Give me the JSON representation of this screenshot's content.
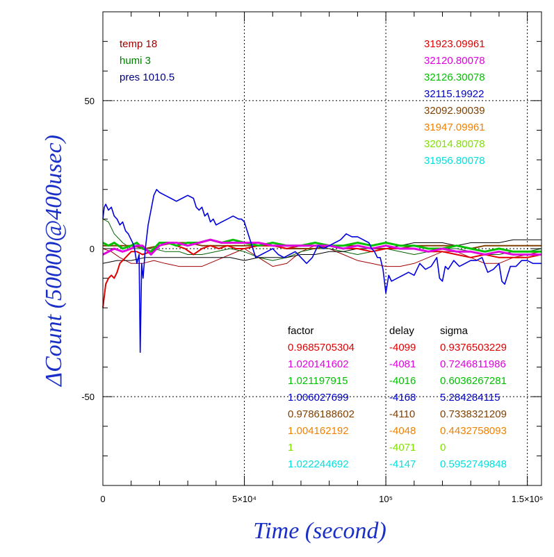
{
  "chart_data": {
    "type": "line",
    "xlabel": "Time (second)",
    "ylabel": "ΔCount (50000@400usec)",
    "xlim": [
      0,
      155000
    ],
    "ylim": [
      -80,
      80
    ],
    "x_ticks": [
      {
        "value": 0,
        "label": "0"
      },
      {
        "value": 50000,
        "label": "5×10⁴"
      },
      {
        "value": 100000,
        "label": "10⁵"
      },
      {
        "value": 150000,
        "label": "1.5×10⁵"
      }
    ],
    "y_ticks": [
      {
        "value": 50,
        "label": "50"
      },
      {
        "value": 0,
        "label": "0"
      },
      {
        "value": -50,
        "label": "-50"
      }
    ],
    "grid": true,
    "env_labels": [
      {
        "text": "temp 18",
        "color": "#a00000"
      },
      {
        "text": "humi 3",
        "color": "#008000"
      },
      {
        "text": "pres 1010.5",
        "color": "#000080"
      }
    ],
    "series_baselines": [
      {
        "text": "31923.09961",
        "color": "#e00000"
      },
      {
        "text": "32120.80078",
        "color": "#e000e0"
      },
      {
        "text": "32126.30078",
        "color": "#00c000"
      },
      {
        "text": "32115.19922",
        "color": "#0000c0"
      },
      {
        "text": "32092.90039",
        "color": "#804000"
      },
      {
        "text": "31947.09961",
        "color": "#f08000"
      },
      {
        "text": "32014.80078",
        "color": "#80e000"
      },
      {
        "text": "31956.80078",
        "color": "#00e0e0"
      }
    ],
    "stats_table": {
      "headers": [
        "factor",
        "delay",
        "sigma"
      ],
      "rows": [
        {
          "factor": "0.9685705304",
          "delay": "-4099",
          "sigma": "0.9376503229",
          "color": "#e00000"
        },
        {
          "factor": "1.020141602",
          "delay": "-4081",
          "sigma": "0.7246811986",
          "color": "#e000e0"
        },
        {
          "factor": "1.021197915",
          "delay": "-4016",
          "sigma": "0.6036267281",
          "color": "#00c000"
        },
        {
          "factor": "1.006027699",
          "delay": "-4168",
          "sigma": "5.284284115",
          "color": "#0000c0"
        },
        {
          "factor": "0.9786188602",
          "delay": "-4110",
          "sigma": "0.7338321209",
          "color": "#804000"
        },
        {
          "factor": "1.004162192",
          "delay": "-4048",
          "sigma": "0.4432758093",
          "color": "#f08000"
        },
        {
          "factor": "1",
          "delay": "-4071",
          "sigma": "0",
          "color": "#80e000"
        },
        {
          "factor": "1.022244692",
          "delay": "-4147",
          "sigma": "0.5952749848",
          "color": "#00e0e0"
        }
      ]
    },
    "series": [
      {
        "color": "#a00000",
        "width": 1,
        "x": [
          0,
          3000,
          6000,
          10000,
          14000,
          18000,
          22000,
          27000,
          30000,
          35000,
          40000,
          45000,
          50000,
          55000,
          60000,
          65000,
          70000,
          75000,
          80000,
          85000,
          90000,
          95000,
          100000,
          105000,
          110000,
          115000,
          120000,
          125000,
          130000,
          135000,
          140000,
          145000,
          150000,
          155000
        ],
        "y": [
          0,
          -1,
          -3,
          -5,
          -5,
          -4,
          -5,
          -6,
          -6,
          -6,
          -4,
          -2,
          0,
          -3,
          -6,
          -5,
          -1,
          1,
          0,
          -2,
          -4,
          -5,
          -6,
          -6,
          -5,
          -3,
          -1,
          -1,
          -3,
          -5,
          -5,
          -3,
          -2,
          -1
        ]
      },
      {
        "color": "#006000",
        "width": 1,
        "x": [
          0,
          2000,
          4000,
          7000,
          10000,
          14000,
          18000,
          22000,
          27000,
          30000,
          35000,
          40000,
          45000,
          50000,
          55000,
          60000,
          65000,
          70000,
          75000,
          80000,
          85000,
          90000,
          95000,
          100000,
          105000,
          110000,
          115000,
          120000,
          125000,
          130000,
          135000,
          140000,
          145000,
          150000,
          155000
        ],
        "y": [
          10,
          9,
          5,
          2,
          0,
          0,
          0,
          -1,
          -1,
          -2,
          -2,
          -1,
          0,
          -1,
          -3,
          -4,
          -3,
          -1,
          0,
          0,
          -1,
          -2,
          -1,
          0,
          -1,
          -2,
          -1,
          0,
          0,
          -1,
          -2,
          -2,
          -1,
          -1,
          0
        ]
      },
      {
        "color": "#000000",
        "width": 1,
        "x": [
          0,
          5000,
          10000,
          15000,
          20000,
          25000,
          30000,
          35000,
          40000,
          45000,
          50000,
          55000,
          60000,
          65000,
          70000,
          75000,
          80000,
          85000,
          90000,
          95000,
          100000,
          105000,
          110000,
          115000,
          120000,
          125000,
          130000,
          135000,
          140000,
          145000,
          150000,
          155000
        ],
        "y": [
          -5,
          -4,
          -4,
          -3,
          -3,
          -3,
          -3,
          -3,
          -3,
          -3,
          -4,
          -3,
          -3,
          -3,
          -2,
          -2,
          -1,
          -1,
          0,
          0,
          0,
          1,
          2,
          2,
          2,
          1,
          2,
          2,
          2,
          3,
          3,
          3
        ]
      },
      {
        "color": "#804000",
        "width": 2,
        "x": [
          0,
          5000,
          10000,
          15000,
          20000,
          25000,
          30000,
          35000,
          40000,
          45000,
          50000,
          55000,
          60000,
          65000,
          70000,
          75000,
          80000,
          85000,
          90000,
          95000,
          100000,
          105000,
          110000,
          115000,
          120000,
          125000,
          130000,
          135000,
          140000,
          145000,
          150000,
          155000
        ],
        "y": [
          1,
          1,
          1,
          0,
          1,
          2,
          2,
          1,
          1,
          1,
          1,
          1,
          1,
          0,
          0,
          0,
          1,
          1,
          1,
          0,
          0,
          0,
          1,
          1,
          1,
          1,
          0,
          1,
          1,
          1,
          1,
          1
        ]
      },
      {
        "color": "#e00000",
        "width": 2,
        "x": [
          0,
          1000,
          2000,
          3000,
          4000,
          5000,
          6000,
          8000,
          10000,
          12000,
          14000,
          17000,
          20000,
          23000,
          26000,
          29000,
          32000,
          35000,
          38000,
          41000,
          44000,
          47000,
          50000,
          55000,
          60000,
          65000,
          70000,
          75000,
          80000,
          85000,
          90000,
          95000,
          100000,
          105000,
          110000,
          115000,
          120000,
          125000,
          130000,
          135000,
          140000,
          145000,
          150000,
          155000
        ],
        "y": [
          -20,
          -12,
          -10,
          -9,
          -10,
          -8,
          -5,
          -3,
          -1,
          -1,
          -2,
          -1,
          1,
          2,
          1,
          0,
          -2,
          0,
          1,
          0,
          1,
          0,
          0,
          1,
          1,
          0,
          1,
          1,
          1,
          0,
          0,
          -1,
          0,
          0,
          0,
          -1,
          -1,
          -2,
          -3,
          -2,
          -3,
          -3,
          -3,
          -2
        ]
      },
      {
        "color": "#00c000",
        "width": 3,
        "x": [
          0,
          2000,
          4000,
          7000,
          10000,
          12000,
          14000,
          17000,
          20000,
          23000,
          26000,
          30000,
          34000,
          38000,
          42000,
          46000,
          50000,
          55000,
          60000,
          65000,
          70000,
          75000,
          80000,
          85000,
          90000,
          95000,
          100000,
          105000,
          110000,
          115000,
          120000,
          125000,
          130000,
          135000,
          140000,
          145000,
          150000,
          155000
        ],
        "y": [
          2,
          1,
          2,
          0,
          1,
          2,
          0,
          -1,
          2,
          2,
          1,
          2,
          2,
          3,
          2,
          3,
          2,
          1,
          2,
          1,
          1,
          2,
          1,
          1,
          2,
          1,
          2,
          1,
          1,
          0,
          0,
          1,
          0,
          -1,
          0,
          -1,
          -1,
          -1
        ]
      },
      {
        "color": "#e000e0",
        "width": 3,
        "x": [
          0,
          2000,
          4000,
          7000,
          10000,
          12000,
          14000,
          17000,
          20000,
          23000,
          26000,
          30000,
          34000,
          38000,
          42000,
          46000,
          50000,
          55000,
          60000,
          65000,
          70000,
          75000,
          80000,
          85000,
          90000,
          95000,
          100000,
          105000,
          110000,
          115000,
          120000,
          125000,
          130000,
          135000,
          140000,
          145000,
          150000,
          155000
        ],
        "y": [
          -2,
          -1,
          0,
          -1,
          0,
          1,
          1,
          -2,
          1,
          2,
          2,
          1,
          2,
          3,
          2,
          2,
          2,
          2,
          1,
          1,
          1,
          1,
          1,
          0,
          1,
          0,
          1,
          0,
          0,
          -1,
          0,
          -1,
          -1,
          -2,
          -1,
          -2,
          -2,
          -2
        ]
      },
      {
        "color": "#0000e0",
        "width": 1.6,
        "x": [
          0,
          500,
          1000,
          2000,
          3000,
          4000,
          5000,
          6000,
          7000,
          8000,
          9000,
          10000,
          11000,
          12000,
          12800,
          13200,
          13700,
          14200,
          15000,
          16000,
          17000,
          18000,
          19000,
          20000,
          22000,
          24000,
          26000,
          28000,
          30000,
          32000,
          33000,
          34000,
          35000,
          36000,
          37000,
          38000,
          39000,
          40000,
          42000,
          44000,
          46000,
          48000,
          49000,
          50000,
          52000,
          54000,
          56000,
          58000,
          60000,
          62000,
          64000,
          66000,
          68000,
          70000,
          72000,
          74000,
          76000,
          78000,
          80000,
          82000,
          84000,
          86000,
          88000,
          90000,
          92000,
          94000,
          95000,
          96000,
          97000,
          98000,
          99000,
          100000,
          101000,
          102000,
          104000,
          106000,
          108000,
          110000,
          112000,
          114000,
          116000,
          118000,
          119000,
          120000,
          121000,
          122000,
          124000,
          126000,
          128000,
          130000,
          132000,
          134000,
          136000,
          138000,
          140000,
          141000,
          142000,
          144000,
          146000,
          148000,
          150000,
          152000,
          155000
        ],
        "y": [
          10,
          14,
          15,
          13,
          14,
          11,
          10,
          8,
          9,
          6,
          5,
          3,
          1,
          -5,
          -2,
          -35,
          -5,
          -10,
          0,
          8,
          13,
          18,
          20,
          19,
          18,
          17,
          16,
          17,
          18,
          17,
          14,
          13,
          14,
          11,
          12,
          9,
          10,
          8,
          9,
          10,
          11,
          10,
          10,
          9,
          3,
          -3,
          -2,
          -1,
          0,
          -2,
          -3,
          -2,
          -1,
          -3,
          -5,
          -3,
          1,
          0,
          1,
          2,
          3,
          5,
          4,
          4,
          3,
          2,
          0,
          -1,
          -3,
          -3,
          -7,
          -15,
          -9,
          -11,
          -10,
          -9,
          -8,
          -9,
          -5,
          -7,
          -6,
          -3,
          -10,
          -11,
          -6,
          -7,
          -4,
          -6,
          -5,
          -4,
          -4,
          -3,
          -8,
          -7,
          -5,
          -11,
          -12,
          -6,
          -6,
          -4,
          -4,
          -5,
          -5
        ]
      }
    ]
  }
}
